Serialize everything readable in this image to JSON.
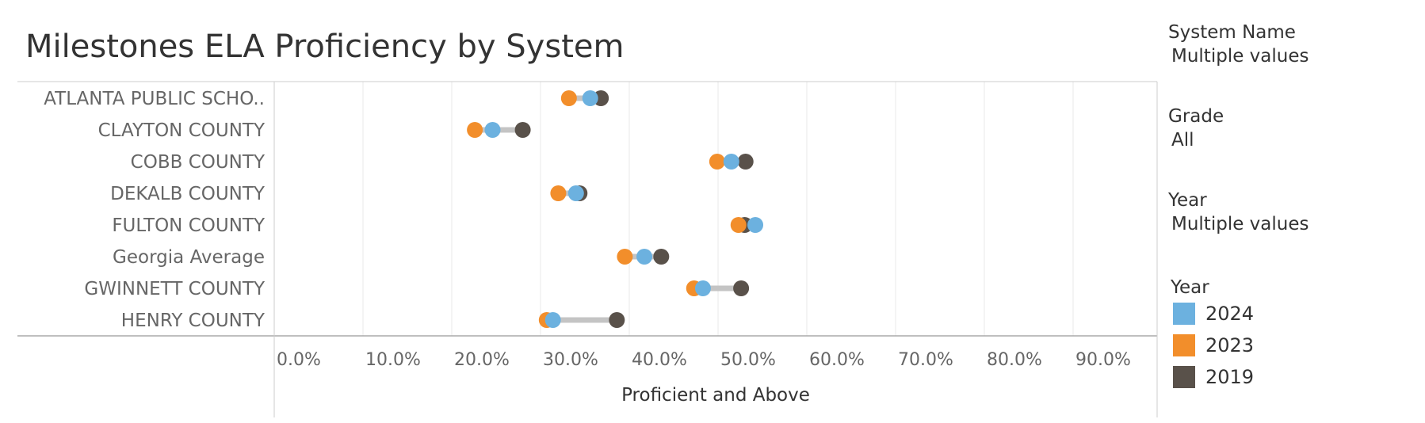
{
  "title": "Milestones ELA Proficiency by System",
  "filters": [
    {
      "label": "System Name",
      "value": "Multiple values"
    },
    {
      "label": "Grade",
      "value": "All"
    },
    {
      "label": "Year",
      "value": "Multiple values"
    }
  ],
  "legend": {
    "title": "Year",
    "items": [
      {
        "label": "2024",
        "color": "#6cb1df"
      },
      {
        "label": "2023",
        "color": "#f28e2b"
      },
      {
        "label": "2019",
        "color": "#59514a"
      }
    ]
  },
  "colors": {
    "range_bar": "#c4c4c4",
    "gridline": "#e8e8e8",
    "axis": "#cccccc",
    "row_label": "#666666"
  },
  "chart_data": {
    "type": "scatter",
    "subtype": "dumbbell",
    "xlabel": "Proficient and Above",
    "xlim": [
      0,
      100
    ],
    "x_ticks": [
      0,
      10,
      20,
      30,
      40,
      50,
      60,
      70,
      80,
      90
    ],
    "x_tick_labels": [
      "0.0%",
      "10.0%",
      "20.0%",
      "30.0%",
      "40.0%",
      "50.0%",
      "60.0%",
      "70.0%",
      "80.0%",
      "90.0%"
    ],
    "grid": true,
    "legend_position": "right",
    "categories": [
      "ATLANTA PUBLIC SCHO..",
      "CLAYTON COUNTY",
      "COBB COUNTY",
      "DEKALB COUNTY",
      "FULTON COUNTY",
      "Georgia Average",
      "GWINNETT COUNTY",
      "HENRY COUNTY"
    ],
    "series": [
      {
        "name": "2019",
        "values": [
          36.8,
          28.0,
          53.1,
          34.4,
          53.0,
          43.6,
          52.6,
          38.6
        ]
      },
      {
        "name": "2023",
        "values": [
          33.2,
          22.6,
          49.9,
          32.0,
          52.3,
          39.5,
          47.3,
          30.7
        ]
      },
      {
        "name": "2024",
        "values": [
          35.6,
          24.6,
          51.5,
          34.0,
          54.2,
          41.7,
          48.3,
          31.4
        ]
      }
    ]
  }
}
